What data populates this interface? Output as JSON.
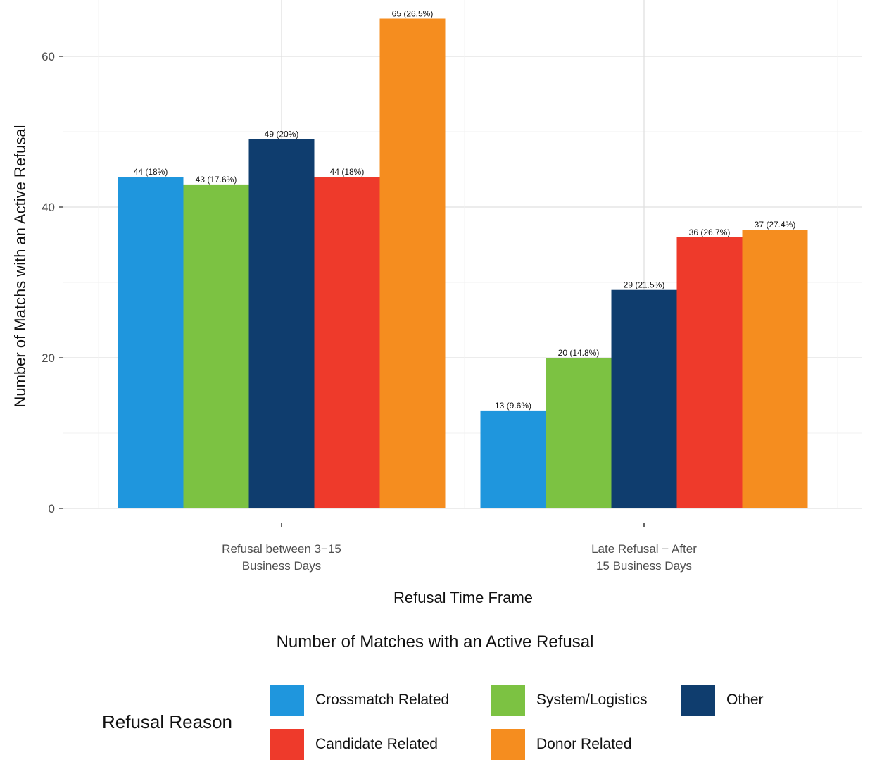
{
  "chart_data": {
    "type": "bar",
    "title": "",
    "xlabel": "Refusal Time Frame",
    "ylabel": "Number of Matchs with an Active Refusal",
    "ylim": [
      0,
      66
    ],
    "yticks": [
      "0",
      "20",
      "40",
      "60"
    ],
    "grid": true,
    "legend_position": "bottom",
    "legend_title": "Refusal Reason",
    "categories": [
      [
        "Refusal between 3−15",
        "Business Days"
      ],
      [
        "Late Refusal − After",
        "15 Business Days"
      ]
    ],
    "series": [
      {
        "name": "Crossmatch Related",
        "color": "#1f96dd",
        "values": [
          44,
          13
        ],
        "labels": [
          "44 (18%)",
          "13 (9.6%)"
        ]
      },
      {
        "name": "System/Logistics",
        "color": "#7cc242",
        "values": [
          43,
          20
        ],
        "labels": [
          "43 (17.6%)",
          "20 (14.8%)"
        ]
      },
      {
        "name": "Other",
        "color": "#0f3d6e",
        "values": [
          49,
          29
        ],
        "labels": [
          "49 (20%)",
          "29 (21.5%)"
        ]
      },
      {
        "name": "Candidate Related",
        "color": "#ee3a2b",
        "values": [
          44,
          36
        ],
        "labels": [
          "44 (18%)",
          "36 (26.7%)"
        ]
      },
      {
        "name": "Donor Related",
        "color": "#f58d1f",
        "values": [
          65,
          37
        ],
        "labels": [
          "65 (26.5%)",
          "37 (27.4%)"
        ]
      }
    ]
  },
  "caption": "Number of Matches with an Active Refusal"
}
